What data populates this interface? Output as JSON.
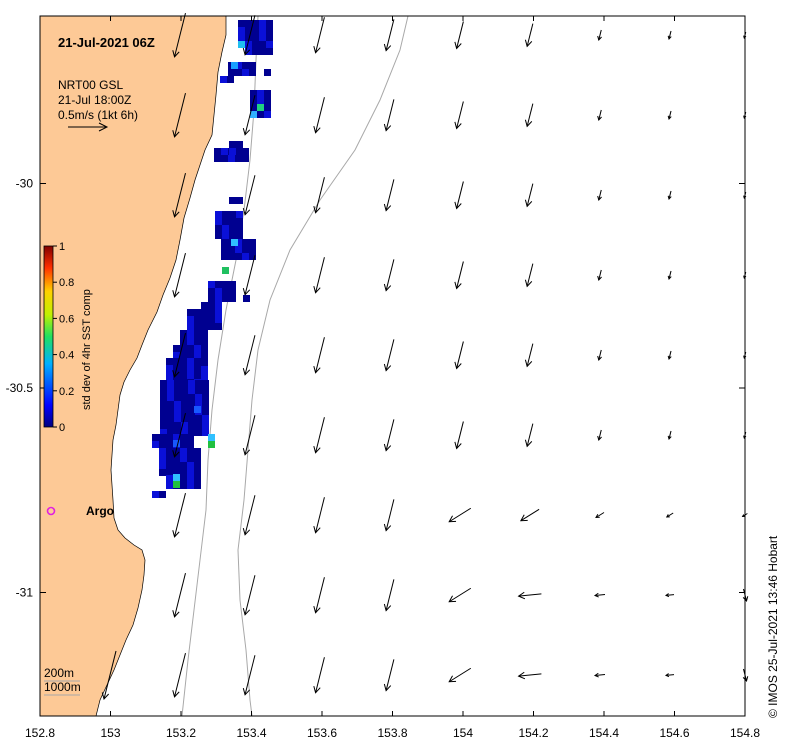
{
  "title": "21-Jul-2021 06Z",
  "vector_legend": {
    "product": "NRT00 GSL",
    "time": "21-Jul 18:00Z",
    "scale": "0.5m/s (1kt 6h)"
  },
  "colorbar": {
    "label": "std dev of 4hr SST comp",
    "ticks": [
      "0",
      "0.2",
      "0.4",
      "0.6",
      "0.8",
      "1"
    ]
  },
  "marker": {
    "label": "Argo",
    "color": "#e020e0"
  },
  "isobath_legend": {
    "line1": "200m",
    "line2": "1000m"
  },
  "footer": "© IMOS 25-Jul-2021 13:46 Hobart",
  "x_ticks": [
    "152.8",
    "153",
    "153.2",
    "153.4",
    "153.6",
    "153.8",
    "154",
    "154.2",
    "154.4",
    "154.6",
    "154.8"
  ],
  "y_ticks": [
    "-30",
    "-30.5",
    "-31"
  ],
  "colors": {
    "land": "#fdc996",
    "isobath": "#a8a8a8",
    "arrow": "#000000"
  }
}
